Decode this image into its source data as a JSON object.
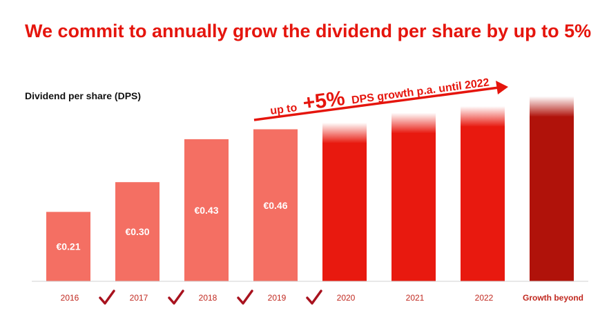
{
  "title": "We commit to annually grow the dividend per share by up to 5%",
  "colors": {
    "title": "#e5150d",
    "actual_bar": "#f46f63",
    "projected_bar": "#e8190f",
    "beyond_bar": "#b0120a",
    "check": "#a8121e",
    "x_label": "#c0281f"
  },
  "chart_data": {
    "type": "bar",
    "title": "",
    "ylabel": "Dividend per share (DPS)",
    "xlabel": "",
    "categories": [
      "2016",
      "2017",
      "2018",
      "2019",
      "2020",
      "2021",
      "2022",
      "Growth beyond"
    ],
    "values": [
      0.21,
      0.3,
      0.43,
      0.46,
      0.48,
      0.51,
      0.53,
      0.56
    ],
    "data_labels": [
      "€0.21",
      "€0.30",
      "€0.43",
      "€0.46",
      "",
      "",
      "",
      ""
    ],
    "bar_kind": [
      "actual",
      "actual",
      "actual",
      "actual",
      "projected",
      "projected",
      "projected",
      "beyond"
    ],
    "delivered_checkmarks": [
      true,
      true,
      true,
      true,
      false,
      false,
      false,
      false
    ],
    "ylim": [
      0,
      0.58
    ],
    "grid": false,
    "legend": "none",
    "annotation": {
      "prefix": "up to",
      "highlight": "+5%",
      "suffix": "DPS growth p.a. until 2022",
      "arrow_icon": "arrow-right-icon"
    }
  }
}
